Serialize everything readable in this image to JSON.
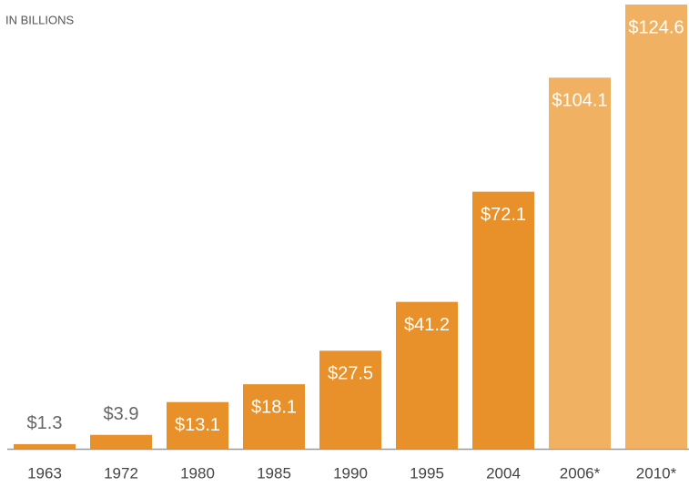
{
  "chart_data": {
    "type": "bar",
    "subtitle": "IN BILLIONS",
    "categories": [
      "1963",
      "1972",
      "1980",
      "1985",
      "1990",
      "1995",
      "2004",
      "2006*",
      "2010*"
    ],
    "values": [
      1.3,
      3.9,
      13.1,
      18.1,
      27.5,
      41.2,
      72.1,
      104.1,
      124.6
    ],
    "value_labels": [
      "$1.3",
      "$3.9",
      "$13.1",
      "$18.1",
      "$27.5",
      "$41.2",
      "$72.1",
      "$104.1",
      "$124.6"
    ],
    "colors": [
      "#e8912a",
      "#e8912a",
      "#e8912a",
      "#e8912a",
      "#e8912a",
      "#e8912a",
      "#e8912a",
      "#f0b262",
      "#f0b262"
    ]
  }
}
